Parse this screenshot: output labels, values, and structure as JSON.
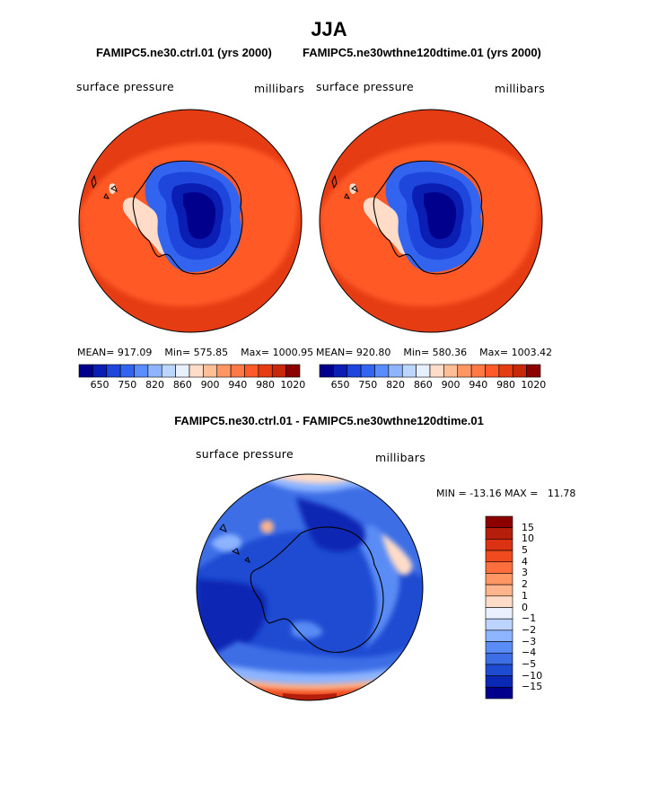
{
  "title": "JJA",
  "panels": {
    "left": {
      "title": "FAMIPC5.ne30.ctrl.01 (yrs 2000)",
      "left_label": "surface pressure",
      "right_label": "millibars",
      "stats": {
        "mean_label": "MEAN=",
        "mean": "917.09",
        "min_label": "Min=",
        "min": "575.85",
        "max_label": "Max=",
        "max": "1000.95"
      }
    },
    "right": {
      "title": "FAMIPC5.ne30wthne120dtime.01 (yrs 2000)",
      "left_label": "surface pressure",
      "right_label": "millibars",
      "stats": {
        "mean_label": "MEAN=",
        "mean": "920.80",
        "min_label": "Min=",
        "min": "580.36",
        "max_label": "Max=",
        "max": "1003.42"
      }
    },
    "diff": {
      "title": "FAMIPC5.ne30.ctrl.01 - FAMIPC5.ne30wthne120dtime.01",
      "left_label": "surface pressure",
      "right_label": "millibars",
      "minmax": {
        "min_label": "MIN =",
        "min": "-13.16",
        "max_label": "MAX =",
        "max": "11.78"
      }
    }
  },
  "colorbar_abs": {
    "tick_labels": [
      "650",
      "750",
      "820",
      "860",
      "900",
      "940",
      "980",
      "1020"
    ],
    "colors": [
      "#00008c",
      "#0a1eb4",
      "#1e46dc",
      "#3264f0",
      "#5a8cff",
      "#8cb4ff",
      "#bcd6ff",
      "#e6f0ff",
      "#ffdcc8",
      "#ffbe96",
      "#ff9664",
      "#ff7846",
      "#ff5a28",
      "#e63c14",
      "#c8280a",
      "#8c0000"
    ]
  },
  "colorbar_diff": {
    "tick_labels": [
      "15",
      "10",
      "5",
      "4",
      "3",
      "2",
      "1",
      "0",
      "−1",
      "−2",
      "−3",
      "−4",
      "−5",
      "−10",
      "−15"
    ],
    "colors": [
      "#8c0000",
      "#b41e0a",
      "#dc3214",
      "#f04b1e",
      "#ff6e3c",
      "#ff9664",
      "#ffb48c",
      "#ffdcc8",
      "#ebf0ff",
      "#bcd2ff",
      "#8cb4ff",
      "#5a8cf5",
      "#3c6ee6",
      "#1e4bd2",
      "#0a28b4",
      "#00008c"
    ]
  },
  "chart_data": [
    {
      "type": "heatmap",
      "title": "FAMIPC5.ne30.ctrl.01 (yrs 2000)",
      "variable": "surface pressure",
      "units": "millibars",
      "projection": "south polar stereographic",
      "mean": 917.09,
      "min": 575.85,
      "max": 1000.95,
      "levels": [
        650,
        750,
        820,
        860,
        900,
        940,
        980,
        1020
      ]
    },
    {
      "type": "heatmap",
      "title": "FAMIPC5.ne30wthne120dtime.01 (yrs 2000)",
      "variable": "surface pressure",
      "units": "millibars",
      "projection": "south polar stereographic",
      "mean": 920.8,
      "min": 580.36,
      "max": 1003.42,
      "levels": [
        650,
        750,
        820,
        860,
        900,
        940,
        980,
        1020
      ]
    },
    {
      "type": "heatmap",
      "title": "FAMIPC5.ne30.ctrl.01 - FAMIPC5.ne30wthne120dtime.01",
      "variable": "surface pressure",
      "units": "millibars",
      "projection": "south polar stereographic",
      "min": -13.16,
      "max": 11.78,
      "levels": [
        -15,
        -10,
        -5,
        -4,
        -3,
        -2,
        -1,
        0,
        1,
        2,
        3,
        4,
        5,
        10,
        15
      ]
    }
  ]
}
